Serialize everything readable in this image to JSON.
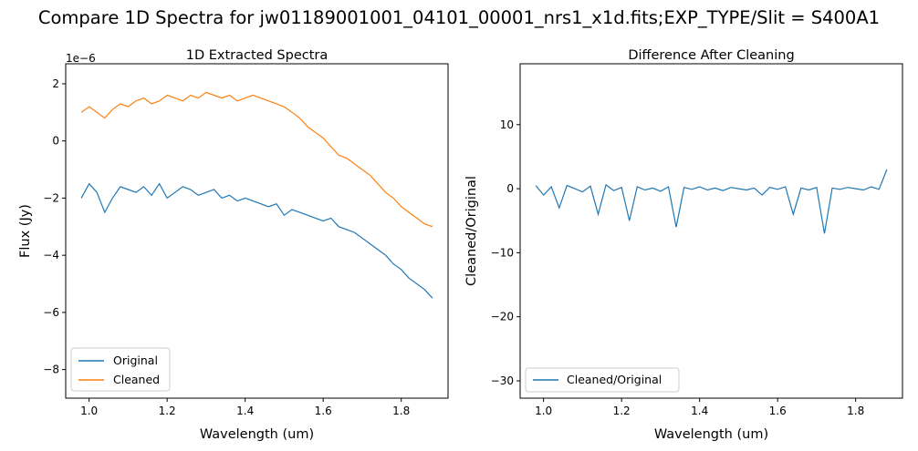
{
  "suptitle": "Compare 1D Spectra for jw01189001001_04101_00001_nrs1_x1d.fits;EXP_TYPE/Slit = S400A1",
  "colors": {
    "series1": "#1f77b4",
    "series2": "#ff7f0e"
  },
  "chart_data": [
    {
      "type": "line",
      "title": "1D Extracted Spectra",
      "xlabel": "Wavelength (um)",
      "ylabel": "Flux (Jy)",
      "offset_text": "1e−6",
      "xlim": [
        0.94,
        1.92
      ],
      "ylim": [
        -9.0,
        2.7
      ],
      "xticks": [
        1.0,
        1.2,
        1.4,
        1.6,
        1.8
      ],
      "xtick_labels": [
        "1.0",
        "1.2",
        "1.4",
        "1.6",
        "1.8"
      ],
      "yticks": [
        -8,
        -6,
        -4,
        -2,
        0,
        2
      ],
      "ytick_labels": [
        "−8",
        "−6",
        "−4",
        "−2",
        "0",
        "2"
      ],
      "legend_position": "lower-left",
      "series": [
        {
          "name": "Original",
          "color": "#1f77b4",
          "x": [
            0.98,
            1.0,
            1.02,
            1.04,
            1.06,
            1.08,
            1.1,
            1.12,
            1.14,
            1.16,
            1.18,
            1.2,
            1.22,
            1.24,
            1.26,
            1.28,
            1.3,
            1.32,
            1.34,
            1.36,
            1.38,
            1.4,
            1.42,
            1.44,
            1.46,
            1.48,
            1.5,
            1.52,
            1.54,
            1.56,
            1.58,
            1.6,
            1.62,
            1.64,
            1.66,
            1.68,
            1.7,
            1.72,
            1.74,
            1.76,
            1.78,
            1.8,
            1.82,
            1.84,
            1.86,
            1.88
          ],
          "y": [
            -2.0,
            -1.5,
            -1.8,
            -2.5,
            -2.0,
            -1.6,
            -1.7,
            -1.8,
            -1.6,
            -1.9,
            -1.5,
            -2.0,
            -1.8,
            -1.6,
            -1.7,
            -1.9,
            -1.8,
            -1.7,
            -2.0,
            -1.9,
            -2.1,
            -2.0,
            -2.1,
            -2.2,
            -2.3,
            -2.2,
            -2.6,
            -2.4,
            -2.5,
            -2.6,
            -2.7,
            -2.8,
            -2.7,
            -3.0,
            -3.1,
            -3.2,
            -3.4,
            -3.6,
            -3.8,
            -4.0,
            -4.3,
            -4.5,
            -4.8,
            -5.0,
            -5.2,
            -5.5
          ]
        },
        {
          "name": "Cleaned",
          "color": "#ff7f0e",
          "x": [
            0.98,
            1.0,
            1.02,
            1.04,
            1.06,
            1.08,
            1.1,
            1.12,
            1.14,
            1.16,
            1.18,
            1.2,
            1.22,
            1.24,
            1.26,
            1.28,
            1.3,
            1.32,
            1.34,
            1.36,
            1.38,
            1.4,
            1.42,
            1.44,
            1.46,
            1.48,
            1.5,
            1.52,
            1.54,
            1.56,
            1.58,
            1.6,
            1.62,
            1.64,
            1.66,
            1.68,
            1.7,
            1.72,
            1.74,
            1.76,
            1.78,
            1.8,
            1.82,
            1.84,
            1.86,
            1.88
          ],
          "y": [
            1.0,
            1.2,
            1.0,
            0.8,
            1.1,
            1.3,
            1.2,
            1.4,
            1.5,
            1.3,
            1.4,
            1.6,
            1.5,
            1.4,
            1.6,
            1.5,
            1.7,
            1.6,
            1.5,
            1.6,
            1.4,
            1.5,
            1.6,
            1.5,
            1.4,
            1.3,
            1.2,
            1.0,
            0.8,
            0.5,
            0.3,
            0.1,
            -0.2,
            -0.5,
            -0.6,
            -0.8,
            -1.0,
            -1.2,
            -1.5,
            -1.8,
            -2.0,
            -2.3,
            -2.5,
            -2.7,
            -2.9,
            -3.0
          ]
        }
      ]
    },
    {
      "type": "line",
      "title": "Difference After Cleaning",
      "xlabel": "Wavelength (um)",
      "ylabel": "Cleaned/Original",
      "xlim": [
        0.94,
        1.92
      ],
      "ylim": [
        -32.7,
        19.5
      ],
      "xticks": [
        1.0,
        1.2,
        1.4,
        1.6,
        1.8
      ],
      "xtick_labels": [
        "1.0",
        "1.2",
        "1.4",
        "1.6",
        "1.8"
      ],
      "yticks": [
        -30,
        -20,
        -10,
        0,
        10
      ],
      "ytick_labels": [
        "−30",
        "−20",
        "−10",
        "0",
        "10"
      ],
      "legend_position": "lower-left",
      "series": [
        {
          "name": "Cleaned/Original",
          "color": "#1f77b4",
          "x": [
            0.98,
            1.0,
            1.02,
            1.04,
            1.06,
            1.08,
            1.1,
            1.12,
            1.14,
            1.16,
            1.18,
            1.2,
            1.22,
            1.24,
            1.26,
            1.28,
            1.3,
            1.32,
            1.34,
            1.36,
            1.38,
            1.4,
            1.42,
            1.44,
            1.46,
            1.48,
            1.5,
            1.52,
            1.54,
            1.56,
            1.58,
            1.6,
            1.62,
            1.64,
            1.66,
            1.68,
            1.7,
            1.72,
            1.74,
            1.76,
            1.78,
            1.8,
            1.82,
            1.84,
            1.86,
            1.88
          ],
          "y": [
            0.5,
            -1.0,
            0.3,
            -3.0,
            0.5,
            0.0,
            -0.5,
            0.4,
            -4.0,
            0.6,
            -0.3,
            0.2,
            -5.0,
            0.3,
            -0.2,
            0.1,
            -0.4,
            0.3,
            -6.0,
            0.2,
            -0.1,
            0.3,
            -0.2,
            0.1,
            -0.3,
            0.2,
            0.0,
            -0.2,
            0.1,
            -1.0,
            0.2,
            -0.1,
            0.3,
            -4.0,
            0.1,
            -0.2,
            0.2,
            -7.0,
            0.1,
            -0.1,
            0.2,
            0.0,
            -0.2,
            0.3,
            -0.1,
            3.0
          ]
        }
      ]
    }
  ]
}
